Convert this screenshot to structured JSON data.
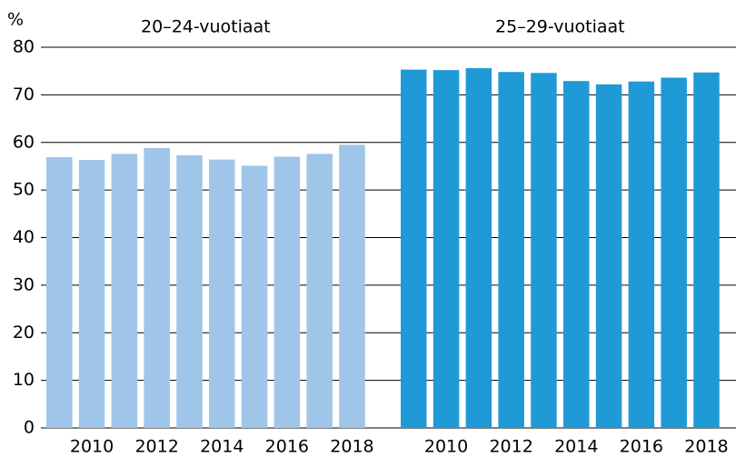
{
  "chart_data": {
    "type": "bar",
    "ylabel": "%",
    "categories": [
      null,
      "2010",
      null,
      "2012",
      null,
      "2014",
      null,
      "2016",
      null,
      "2018"
    ],
    "series": [
      {
        "name": "20–24-vuotiaat",
        "color": "#9fc5e8",
        "values": [
          56.9,
          56.3,
          57.6,
          58.8,
          57.3,
          56.4,
          55.1,
          57.0,
          57.6,
          59.5
        ]
      },
      {
        "name": "25–29-vuotiaat",
        "color": "#1f9ad6",
        "values": [
          75.3,
          75.2,
          75.6,
          74.8,
          74.6,
          72.9,
          72.2,
          72.8,
          73.6,
          74.7
        ]
      }
    ],
    "ylim": [
      0,
      80
    ],
    "yticks": [
      0,
      10,
      20,
      30,
      40,
      50,
      60,
      70,
      80
    ],
    "grid": true
  }
}
